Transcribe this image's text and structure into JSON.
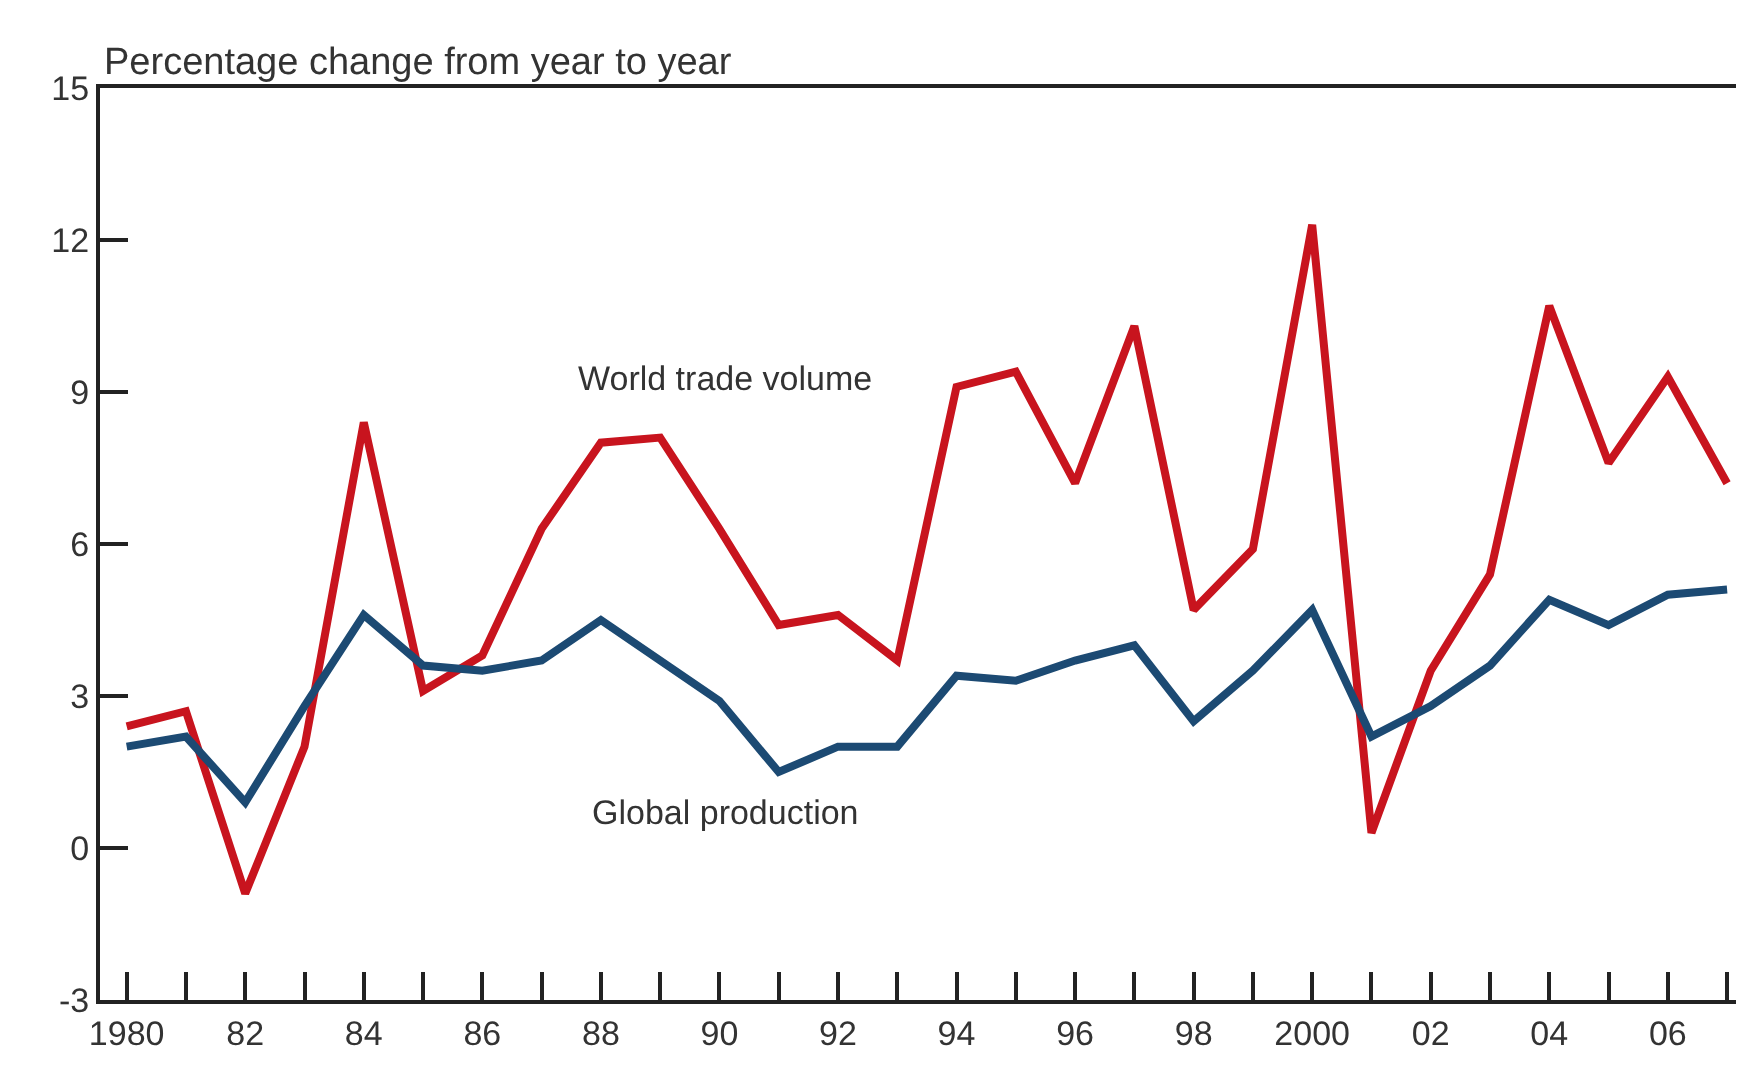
{
  "chart_data": {
    "type": "line",
    "ylabel": "Percentage change from year to year",
    "x": [
      1980,
      1981,
      1982,
      1983,
      1984,
      1985,
      1986,
      1987,
      1988,
      1989,
      1990,
      1991,
      1992,
      1993,
      1994,
      1995,
      1996,
      1997,
      1998,
      1999,
      2000,
      2001,
      2002,
      2003,
      2004,
      2005,
      2006,
      2007
    ],
    "series": [
      {
        "name": "World trade volume",
        "color": "#c8141e",
        "values": [
          2.4,
          2.7,
          -0.9,
          2.0,
          8.4,
          3.1,
          3.8,
          6.3,
          8.0,
          8.1,
          6.3,
          4.4,
          4.6,
          3.7,
          9.1,
          9.4,
          7.2,
          10.3,
          4.7,
          5.9,
          12.3,
          0.3,
          3.5,
          5.4,
          10.7,
          7.6,
          9.3,
          7.2
        ]
      },
      {
        "name": "Global production",
        "color": "#1c4a73",
        "values": [
          2.0,
          2.2,
          0.9,
          2.8,
          4.6,
          3.6,
          3.5,
          3.7,
          4.5,
          3.7,
          2.9,
          1.5,
          2.0,
          2.0,
          3.4,
          3.3,
          3.7,
          4.0,
          2.5,
          3.5,
          4.7,
          2.2,
          2.8,
          3.6,
          4.9,
          4.4,
          5.0,
          5.1
        ]
      }
    ],
    "xlim": [
      1979.55,
      2007.15
    ],
    "xticks": [
      {
        "value": 1980,
        "label": "1980"
      },
      {
        "value": 1981,
        "label": null
      },
      {
        "value": 1982,
        "label": "82"
      },
      {
        "value": 1983,
        "label": null
      },
      {
        "value": 1984,
        "label": "84"
      },
      {
        "value": 1985,
        "label": null
      },
      {
        "value": 1986,
        "label": "86"
      },
      {
        "value": 1987,
        "label": null
      },
      {
        "value": 1988,
        "label": "88"
      },
      {
        "value": 1989,
        "label": null
      },
      {
        "value": 1990,
        "label": "90"
      },
      {
        "value": 1991,
        "label": null
      },
      {
        "value": 1992,
        "label": "92"
      },
      {
        "value": 1993,
        "label": null
      },
      {
        "value": 1994,
        "label": "94"
      },
      {
        "value": 1995,
        "label": null
      },
      {
        "value": 1996,
        "label": "96"
      },
      {
        "value": 1997,
        "label": null
      },
      {
        "value": 1998,
        "label": "98"
      },
      {
        "value": 1999,
        "label": null
      },
      {
        "value": 2000,
        "label": "2000"
      },
      {
        "value": 2001,
        "label": null
      },
      {
        "value": 2002,
        "label": "02"
      },
      {
        "value": 2003,
        "label": null
      },
      {
        "value": 2004,
        "label": "04"
      },
      {
        "value": 2005,
        "label": null
      },
      {
        "value": 2006,
        "label": "06"
      },
      {
        "value": 2007,
        "label": null
      }
    ],
    "ylim": [
      -3,
      15
    ],
    "yticks": [
      -3,
      0,
      3,
      6,
      9,
      12,
      15
    ],
    "legend": false,
    "marker": "none",
    "line_style": "solid"
  }
}
